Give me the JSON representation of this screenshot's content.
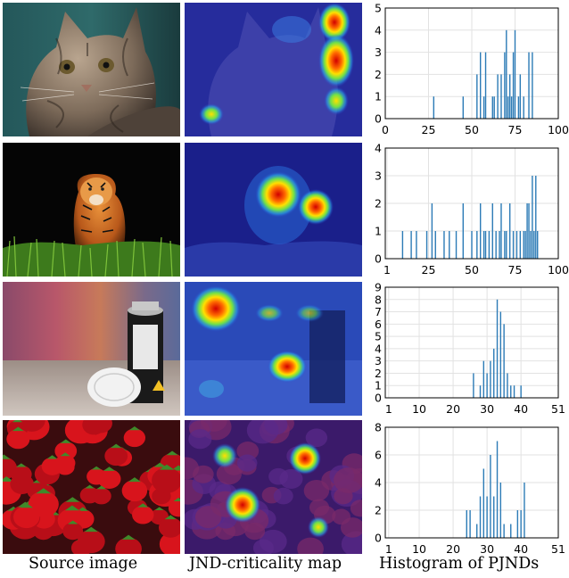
{
  "columns": [
    "Source image",
    "JND-criticality map",
    "Histogram of PJNDs"
  ],
  "rows": [
    {
      "name": "cat"
    },
    {
      "name": "tiger"
    },
    {
      "name": "spray-can"
    },
    {
      "name": "strawberries"
    }
  ],
  "chart_data": [
    {
      "type": "bar",
      "xlim": [
        0,
        100
      ],
      "ylim": [
        0,
        5
      ],
      "xticks": [
        0,
        25,
        50,
        75,
        100
      ],
      "yticks": [
        0,
        1,
        2,
        3,
        4,
        5
      ],
      "grid": true,
      "x": [
        28,
        45,
        53,
        55,
        57,
        58,
        62,
        63,
        65,
        67,
        69,
        70,
        71,
        72,
        73,
        74,
        75,
        77,
        78,
        80,
        83,
        85
      ],
      "values": [
        1,
        1,
        2,
        3,
        1,
        3,
        1,
        1,
        2,
        2,
        3,
        4,
        1,
        2,
        1,
        3,
        4,
        1,
        2,
        1,
        3,
        3
      ]
    },
    {
      "type": "bar",
      "xlim": [
        0,
        100
      ],
      "ylim": [
        0,
        4
      ],
      "xticks": [
        1,
        25,
        50,
        75,
        100
      ],
      "yticks": [
        0,
        1,
        2,
        3,
        4
      ],
      "grid": true,
      "x": [
        10,
        15,
        18,
        24,
        27,
        29,
        34,
        37,
        41,
        45,
        50,
        53,
        55,
        57,
        58,
        60,
        62,
        64,
        66,
        67,
        69,
        70,
        72,
        74,
        76,
        78,
        80,
        81,
        82,
        83,
        84,
        85,
        86,
        87,
        88
      ],
      "values": [
        1,
        1,
        1,
        1,
        2,
        1,
        1,
        1,
        1,
        2,
        1,
        1,
        2,
        1,
        1,
        1,
        2,
        1,
        1,
        2,
        1,
        1,
        2,
        1,
        1,
        1,
        1,
        1,
        2,
        2,
        1,
        3,
        1,
        3,
        1
      ]
    },
    {
      "type": "bar",
      "xlim": [
        0,
        51
      ],
      "ylim": [
        0,
        9
      ],
      "xticks": [
        1,
        10,
        20,
        30,
        40,
        51
      ],
      "yticks": [
        0,
        1,
        2,
        3,
        4,
        5,
        6,
        7,
        8,
        9
      ],
      "grid": true,
      "x": [
        26,
        28,
        29,
        30,
        31,
        32,
        33,
        34,
        35,
        36,
        37,
        38,
        40
      ],
      "values": [
        2,
        1,
        3,
        2,
        3,
        4,
        8,
        7,
        6,
        2,
        1,
        1,
        1
      ]
    },
    {
      "type": "bar",
      "xlim": [
        0,
        51
      ],
      "ylim": [
        0,
        8
      ],
      "xticks": [
        1,
        10,
        20,
        30,
        40,
        51
      ],
      "yticks": [
        0,
        2,
        4,
        6,
        8
      ],
      "grid": true,
      "x": [
        24,
        25,
        27,
        28,
        29,
        30,
        31,
        32,
        33,
        34,
        35,
        37,
        39,
        40,
        41
      ],
      "values": [
        2,
        2,
        1,
        3,
        5,
        3,
        6,
        3,
        7,
        4,
        1,
        1,
        2,
        2,
        4
      ]
    }
  ]
}
